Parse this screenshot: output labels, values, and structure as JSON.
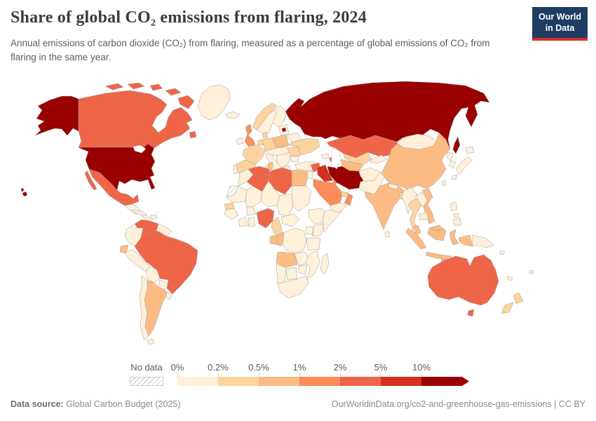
{
  "header": {
    "title": "Share of global CO₂ emissions from flaring, 2024",
    "subtitle": "Annual emissions of carbon dioxide (CO₂) from flaring, measured as a percentage of global emissions of CO₂ from flaring in the same year.",
    "logo": {
      "line1": "Our World",
      "line2": "in Data",
      "bg_color": "#1d3d63",
      "accent_color": "#d8332c"
    }
  },
  "footer": {
    "source_label": "Data source:",
    "source_value": " Global Carbon Budget (2025)",
    "attribution": "OurWorldinData.org/co2-and-greenhouse-gas-emissions | CC BY"
  },
  "chart_data": {
    "type": "choropleth",
    "title": "Share of global CO₂ emissions from flaring, 2024",
    "unit": "% of global flaring CO₂ emissions",
    "legend_position": "bottom",
    "no_data_label": "No data",
    "bins": [
      {
        "label": "0%",
        "range": "0–0.2%",
        "color": "#fef0d9"
      },
      {
        "label": "0.2%",
        "range": "0.2–0.5%",
        "color": "#fdd49e"
      },
      {
        "label": "0.5%",
        "range": "0.5–1%",
        "color": "#fdbb84"
      },
      {
        "label": "1%",
        "range": "1–2%",
        "color": "#fc8d59"
      },
      {
        "label": "2%",
        "range": "2–5%",
        "color": "#ef6548"
      },
      {
        "label": "5%",
        "range": "5–10%",
        "color": "#d7301f"
      },
      {
        "label": "10%",
        "range": ">10%",
        "color": "#990000"
      }
    ],
    "countries": {
      "usa": 6,
      "russia": 6,
      "iran": 6,
      "iraq": 5,
      "canada": 4,
      "mexico": 4,
      "venezuela": 4,
      "brazil": 4,
      "algeria": 4,
      "libya": 4,
      "nigeria": 4,
      "kazakhstan": 4,
      "australia": 4,
      "syria": 4,
      "azerbaijan": 4,
      "uk": 3,
      "saudi-arabia": 3,
      "kuwait": 3,
      "oman": 3,
      "argentina": 2,
      "ecuador": 2,
      "egypt": 2,
      "tunisia": 2,
      "gabon": 2,
      "congo": 2,
      "angola": 2,
      "india": 2,
      "china": 2,
      "poland": 2,
      "turkmenistan": 2,
      "vietnam": 2,
      "malaysia": 2,
      "indonesia": 2,
      "norway": 1,
      "france": 1,
      "germany": 1,
      "benelux": 1,
      "spain": 1,
      "denmark": 1,
      "ukraine": 1,
      "romania": 1,
      "uzbekistan": 1,
      "cameroon": 1,
      "senegal": 1,
      "thailand": 1,
      "new-zealand": 1,
      "bangladesh": 1,
      "uae": 1,
      "greenland": 0,
      "central-america": 0,
      "cuba": 0,
      "hispaniola": 0,
      "colombia": 0,
      "guyanas": 0,
      "peru": 0,
      "bolivia": 0,
      "paraguay": 0,
      "uruguay": 0,
      "chile": 0,
      "iceland": 0,
      "ireland": 0,
      "sweden": 0,
      "finland": 0,
      "baltics": 0,
      "belarus": 0,
      "portugal": 0,
      "italy": 0,
      "central-europe": 0,
      "balkans": 0,
      "greece": 0,
      "bulgaria": 0,
      "turkey": 0,
      "georgia": 0,
      "levant": 0,
      "yemen": 0,
      "morocco": 0,
      "mauritania": 0,
      "mali": 0,
      "niger": 0,
      "chad": 0,
      "sudan": 0,
      "guinea": 0,
      "ivory-coast": 0,
      "ghana": 0,
      "burkina-faso": 0,
      "central-african-republic": 0,
      "ethiopia": 0,
      "somalia": 0,
      "kenya": 0,
      "uganda": 0,
      "drc": 0,
      "tanzania": 0,
      "zambia": 0,
      "mozambique": 0,
      "zimbabwe": 0,
      "namibia": 0,
      "botswana": 0,
      "south-africa": 0,
      "madagascar": 0,
      "afghanistan": 0,
      "pakistan": 0,
      "kyrgyzstan-tajikistan": 0,
      "nepal": 0,
      "sri-lanka": 0,
      "mongolia": 0,
      "north-korea": 0,
      "south-korea": 0,
      "japan": 0,
      "taiwan": 0,
      "myanmar": 0,
      "laos": 0,
      "cambodia": 0,
      "papua-new-guinea": 0,
      "solomon-islands": 0,
      "philippines": 0,
      "new-caledonia": 0,
      "fiji": 0,
      "western-sahara": "nodata"
    }
  }
}
